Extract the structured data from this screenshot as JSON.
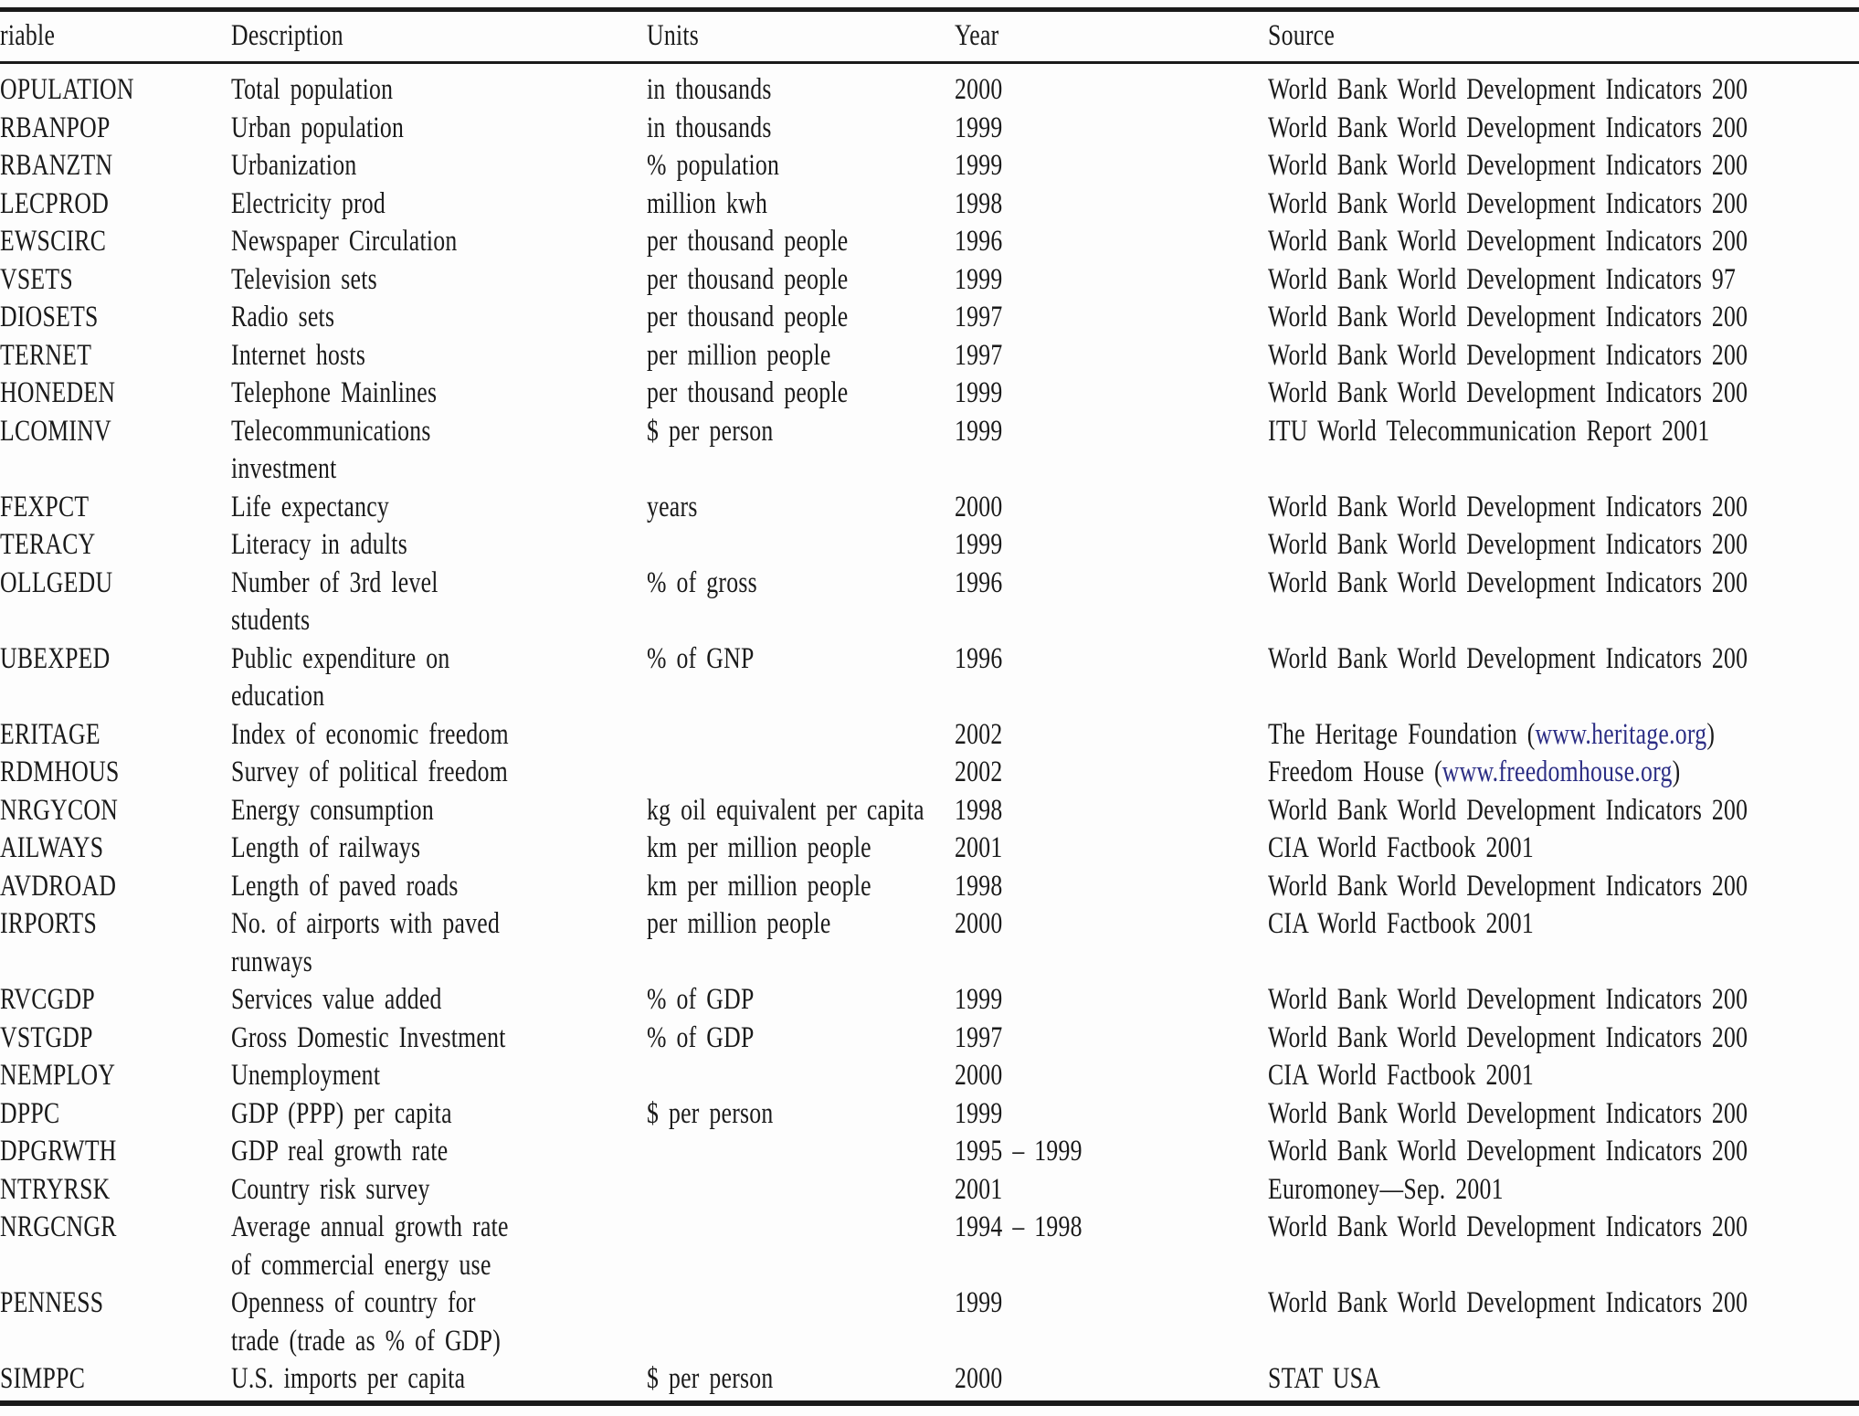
{
  "colors": {
    "text": "#1a1a1a",
    "rule": "#1a1a1a",
    "link_blue": "#2b2d84",
    "background": "#fdfdfd"
  },
  "table": {
    "columns": [
      "riable",
      "Description",
      "Units",
      "Year",
      "Source"
    ],
    "rows": [
      {
        "variable": "OPULATION",
        "description": "Total population",
        "units": "in thousands",
        "year": "2000",
        "source_prefix": "World Bank World Development Indicators 200",
        "source_link": "",
        "source_suffix": ""
      },
      {
        "variable": "RBANPOP",
        "description": "Urban population",
        "units": "in thousands",
        "year": "1999",
        "source_prefix": "World Bank World Development Indicators 200",
        "source_link": "",
        "source_suffix": ""
      },
      {
        "variable": "RBANZTN",
        "description": "Urbanization",
        "units": "% population",
        "year": "1999",
        "source_prefix": "World Bank World Development Indicators 200",
        "source_link": "",
        "source_suffix": ""
      },
      {
        "variable": "LECPROD",
        "description": "Electricity prod",
        "units": "million kwh",
        "year": "1998",
        "source_prefix": "World Bank World Development Indicators 200",
        "source_link": "",
        "source_suffix": ""
      },
      {
        "variable": "EWSCIRC",
        "description": "Newspaper Circulation",
        "units": "per thousand people",
        "year": "1996",
        "source_prefix": "World Bank World Development Indicators 200",
        "source_link": "",
        "source_suffix": ""
      },
      {
        "variable": "VSETS",
        "description": "Television sets",
        "units": "per thousand people",
        "year": "1999",
        "source_prefix": "World Bank World Development Indicators 97",
        "source_link": "",
        "source_suffix": ""
      },
      {
        "variable": "DIOSETS",
        "description": "Radio sets",
        "units": "per thousand people",
        "year": "1997",
        "source_prefix": "World Bank World Development Indicators 200",
        "source_link": "",
        "source_suffix": ""
      },
      {
        "variable": "TERNET",
        "description": "Internet hosts",
        "units": "per million people",
        "year": "1997",
        "source_prefix": "World Bank World Development Indicators 200",
        "source_link": "",
        "source_suffix": ""
      },
      {
        "variable": "HONEDEN",
        "description": "Telephone Mainlines",
        "units": "per thousand people",
        "year": "1999",
        "source_prefix": "World Bank World Development Indicators 200",
        "source_link": "",
        "source_suffix": ""
      },
      {
        "variable": "LCOMINV",
        "description": "Telecommunications\ninvestment",
        "units": "$ per person",
        "year": "1999",
        "source_prefix": "ITU World Telecommunication Report 2001",
        "source_link": "",
        "source_suffix": ""
      },
      {
        "variable": "FEXPCT",
        "description": "Life expectancy",
        "units": "years",
        "year": "2000",
        "source_prefix": "World Bank World Development Indicators 200",
        "source_link": "",
        "source_suffix": ""
      },
      {
        "variable": "TERACY",
        "description": "Literacy in adults",
        "units": "",
        "year": "1999",
        "source_prefix": "World Bank World Development Indicators 200",
        "source_link": "",
        "source_suffix": ""
      },
      {
        "variable": "OLLGEDU",
        "description": "Number of 3rd level\nstudents",
        "units": "% of gross",
        "year": "1996",
        "source_prefix": "World Bank World Development Indicators 200",
        "source_link": "",
        "source_suffix": ""
      },
      {
        "variable": "UBEXPED",
        "description": "Public expenditure on\neducation",
        "units": "% of GNP",
        "year": "1996",
        "source_prefix": "World Bank World Development Indicators 200",
        "source_link": "",
        "source_suffix": ""
      },
      {
        "variable": "ERITAGE",
        "description": "Index of economic freedom",
        "units": "",
        "year": "2002",
        "source_prefix": "The Heritage Foundation (",
        "source_link": "www.heritage.org",
        "source_suffix": ")"
      },
      {
        "variable": "RDMHOUS",
        "description": "Survey of political freedom",
        "units": "",
        "year": "2002",
        "source_prefix": "Freedom House (",
        "source_link": "www.freedomhouse.org",
        "source_suffix": ")"
      },
      {
        "variable": "NRGYCON",
        "description": "Energy consumption",
        "units": "kg oil equivalent per capita",
        "year": "1998",
        "source_prefix": "World Bank World Development Indicators 200",
        "source_link": "",
        "source_suffix": ""
      },
      {
        "variable": "AILWAYS",
        "description": "Length of railways",
        "units": "km per million people",
        "year": "2001",
        "source_prefix": "CIA World Factbook 2001",
        "source_link": "",
        "source_suffix": ""
      },
      {
        "variable": "AVDROAD",
        "description": "Length of paved roads",
        "units": "km per million people",
        "year": "1998",
        "source_prefix": "World Bank World Development Indicators 200",
        "source_link": "",
        "source_suffix": ""
      },
      {
        "variable": "IRPORTS",
        "description": "No. of airports with paved\nrunways",
        "units": "per million people",
        "year": "2000",
        "source_prefix": "CIA World Factbook 2001",
        "source_link": "",
        "source_suffix": ""
      },
      {
        "variable": "RVCGDP",
        "description": "Services value added",
        "units": "% of GDP",
        "year": "1999",
        "source_prefix": "World Bank World Development Indicators 200",
        "source_link": "",
        "source_suffix": ""
      },
      {
        "variable": "VSTGDP",
        "description": "Gross Domestic Investment",
        "units": "% of GDP",
        "year": "1997",
        "source_prefix": "World Bank World Development Indicators 200",
        "source_link": "",
        "source_suffix": ""
      },
      {
        "variable": "NEMPLOY",
        "description": "Unemployment",
        "units": "",
        "year": "2000",
        "source_prefix": "CIA World Factbook 2001",
        "source_link": "",
        "source_suffix": ""
      },
      {
        "variable": "DPPC",
        "description": "GDP (PPP) per capita",
        "units": "$ per person",
        "year": "1999",
        "source_prefix": "World Bank World Development Indicators 200",
        "source_link": "",
        "source_suffix": ""
      },
      {
        "variable": "DPGRWTH",
        "description": "GDP real growth rate",
        "units": "",
        "year": "1995 – 1999",
        "source_prefix": "World Bank World Development Indicators 200",
        "source_link": "",
        "source_suffix": ""
      },
      {
        "variable": "NTRYRSK",
        "description": "Country risk survey",
        "units": "",
        "year": "2001",
        "source_prefix": "Euromoney—Sep. 2001",
        "source_link": "",
        "source_suffix": ""
      },
      {
        "variable": "NRGCNGR",
        "description": "Average annual growth rate\nof commercial energy use",
        "units": "",
        "year": "1994 – 1998",
        "source_prefix": "World Bank World Development Indicators 200",
        "source_link": "",
        "source_suffix": ""
      },
      {
        "variable": "PENNESS",
        "description": "Openness of country for\ntrade (trade as % of GDP)",
        "units": "",
        "year": "1999",
        "source_prefix": "World Bank World Development Indicators 200",
        "source_link": "",
        "source_suffix": ""
      },
      {
        "variable": "SIMPPC",
        "description": "U.S. imports per capita",
        "units": "$ per person",
        "year": "2000",
        "source_prefix": "STAT USA",
        "source_link": "",
        "source_suffix": ""
      }
    ]
  }
}
